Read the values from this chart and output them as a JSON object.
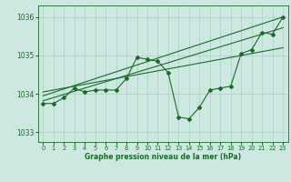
{
  "bg_color": "#cce8e0",
  "grid_color": "#a8d0c8",
  "line_color": "#1a6b2a",
  "text_color": "#1a6b2a",
  "xlabel": "Graphe pression niveau de la mer (hPa)",
  "ylim": [
    1032.75,
    1036.3
  ],
  "xlim": [
    -0.5,
    23.5
  ],
  "yticks": [
    1033,
    1034,
    1035,
    1036
  ],
  "xticks": [
    0,
    1,
    2,
    3,
    4,
    5,
    6,
    7,
    8,
    9,
    10,
    11,
    12,
    13,
    14,
    15,
    16,
    17,
    18,
    19,
    20,
    21,
    22,
    23
  ],
  "main_line": [
    [
      0,
      1033.75
    ],
    [
      1,
      1033.75
    ],
    [
      2,
      1033.9
    ],
    [
      3,
      1034.15
    ],
    [
      4,
      1034.05
    ],
    [
      5,
      1034.1
    ],
    [
      6,
      1034.1
    ],
    [
      7,
      1034.1
    ],
    [
      8,
      1034.4
    ],
    [
      9,
      1034.95
    ],
    [
      10,
      1034.9
    ],
    [
      11,
      1034.85
    ],
    [
      12,
      1034.55
    ],
    [
      13,
      1033.4
    ],
    [
      14,
      1033.35
    ],
    [
      15,
      1033.65
    ],
    [
      16,
      1034.1
    ],
    [
      17,
      1034.15
    ],
    [
      18,
      1034.2
    ],
    [
      19,
      1035.05
    ],
    [
      20,
      1035.15
    ],
    [
      21,
      1035.6
    ],
    [
      22,
      1035.55
    ],
    [
      23,
      1036.0
    ]
  ],
  "trend_line1": [
    [
      0,
      1033.82
    ],
    [
      23,
      1035.72
    ]
  ],
  "trend_line2": [
    [
      0,
      1033.95
    ],
    [
      23,
      1036.0
    ]
  ],
  "trend_line3": [
    [
      0,
      1034.05
    ],
    [
      23,
      1035.2
    ]
  ]
}
